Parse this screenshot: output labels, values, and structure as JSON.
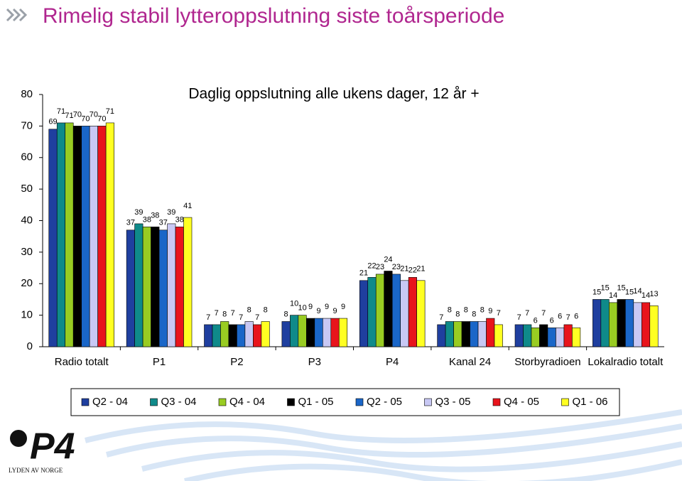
{
  "slide_title": "Rimelig stabil lytteroppslutning siste toårsperiode",
  "logo": {
    "mark": "P4",
    "tagline": "LYDEN AV NORGE"
  },
  "chart_data": {
    "type": "bar",
    "title": "Daglig oppslutning alle ukens dager, 12 år +",
    "categories": [
      "Radio totalt",
      "P1",
      "P2",
      "P3",
      "P4",
      "Kanal 24",
      "Storbyradioen",
      "Lokalradio totalt"
    ],
    "series": [
      {
        "name": "Q2 - 04",
        "color": "#1f3f9f",
        "values": [
          69,
          37,
          7,
          8,
          21,
          7,
          7,
          15
        ]
      },
      {
        "name": "Q3 - 04",
        "color": "#0f8a8a",
        "values": [
          71,
          39,
          7,
          10,
          22,
          8,
          7,
          15
        ]
      },
      {
        "name": "Q4 - 04",
        "color": "#99cc22",
        "values": [
          71,
          38,
          8,
          10,
          23,
          8,
          6,
          14
        ]
      },
      {
        "name": "Q1 - 05",
        "color": "#000000",
        "values": [
          70,
          38,
          7,
          9,
          24,
          8,
          7,
          15
        ]
      },
      {
        "name": "Q2 - 05",
        "color": "#1a66c8",
        "values": [
          70,
          37,
          7,
          9,
          23,
          8,
          6,
          15
        ]
      },
      {
        "name": "Q3 - 05",
        "color": "#c8c8f4",
        "values": [
          70,
          39,
          8,
          9,
          21,
          8,
          6,
          14
        ]
      },
      {
        "name": "Q4 - 05",
        "color": "#e8141c",
        "values": [
          70,
          38,
          7,
          9,
          22,
          9,
          7,
          14
        ]
      },
      {
        "name": "Q1 - 06",
        "color": "#ffff22",
        "values": [
          71,
          41,
          8,
          9,
          21,
          7,
          6,
          13
        ]
      }
    ],
    "ylim": [
      0,
      80
    ],
    "yticks": [
      0,
      10,
      20,
      30,
      40,
      50,
      60,
      70,
      80
    ],
    "grid": false,
    "legend": "bottom"
  }
}
